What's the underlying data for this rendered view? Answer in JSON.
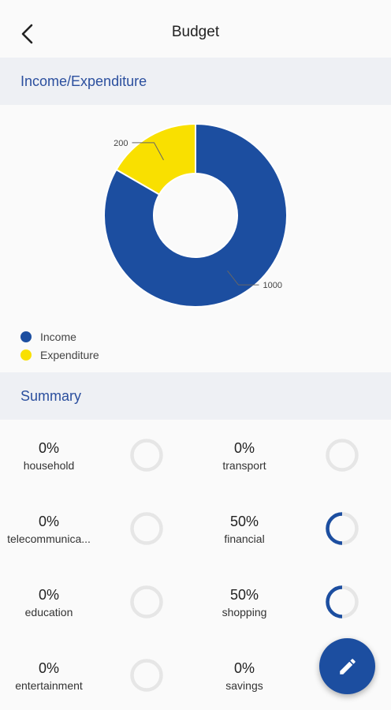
{
  "appbar": {
    "title": "Budget",
    "back_icon": "arrow-back-icon"
  },
  "income_section": {
    "title": "Income/Expenditure"
  },
  "chart_data": {
    "type": "pie",
    "donut": true,
    "categories": [
      "Income",
      "Expenditure"
    ],
    "values": [
      1000,
      200
    ],
    "data_labels": [
      "1000",
      "200"
    ],
    "colors": [
      "#1c4ea0",
      "#f9e000"
    ],
    "legend": "bottom-left"
  },
  "summary_section": {
    "title": "Summary"
  },
  "summary": [
    {
      "percent": "0%",
      "name": "household",
      "value": 0
    },
    {
      "percent": "0%",
      "name": "transport",
      "value": 0
    },
    {
      "percent": "0%",
      "name": "telecommunica...",
      "value": 0
    },
    {
      "percent": "50%",
      "name": "financial",
      "value": 0.5
    },
    {
      "percent": "0%",
      "name": "education",
      "value": 0
    },
    {
      "percent": "50%",
      "name": "shopping",
      "value": 0.5
    },
    {
      "percent": "0%",
      "name": "entertainment",
      "value": 0
    },
    {
      "percent": "0%",
      "name": "savings",
      "value": 0
    }
  ],
  "colors": {
    "accent": "#1c4ea0",
    "expenditure": "#f9e000",
    "ring_track": "#e6e6e6",
    "section_bg": "#eef0f4",
    "section_title": "#2b4f9e"
  },
  "fab": {
    "icon": "pencil-icon"
  }
}
